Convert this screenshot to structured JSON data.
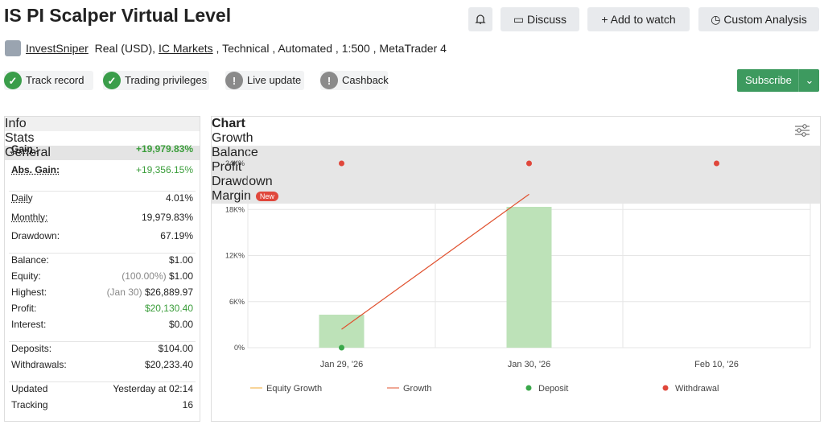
{
  "header": {
    "title": "IS PI Scalper Virtual Level",
    "buttons": [
      "Discuss",
      "Add to watch",
      "Custom Analysis"
    ],
    "author": "InvestSniper",
    "account": "Real (USD),",
    "broker": "IC Markets",
    "details": ", Technical , Automated , 1:500 , MetaTrader 4"
  },
  "badges": [
    {
      "label": "Track record",
      "ok": true
    },
    {
      "label": "Trading privileges",
      "ok": true
    },
    {
      "label": "Live update",
      "ok": false
    },
    {
      "label": "Cashback",
      "ok": false
    }
  ],
  "subscribe": "Subscribe",
  "stats": {
    "tabs": [
      "Info",
      "Stats",
      "General"
    ],
    "groups": [
      [
        {
          "label": "Gain :",
          "value": "+19,979.83%",
          "color": "#3a9d3a"
        },
        {
          "label": "Abs. Gain:",
          "value": "+19,356.15%",
          "color": "#3a9d3a"
        }
      ],
      [
        {
          "label": "Daily",
          "value": "4.01%"
        },
        {
          "label": "Monthly:",
          "value": "19,979.83%"
        },
        {
          "label": "Drawdown:",
          "value": "67.19%"
        }
      ],
      [
        {
          "label": "Balance:",
          "value": "$1.00"
        },
        {
          "label": "Equity:",
          "note": "(100.00%)",
          "value": "$1.00"
        },
        {
          "label": "Highest:",
          "note": "(Jan 30)",
          "value": "$26,889.97"
        },
        {
          "label": "Profit:",
          "value": "$20,130.40",
          "color": "#3a9d3a"
        },
        {
          "label": "Interest:",
          "value": "$0.00"
        }
      ],
      [
        {
          "label": "Deposits:",
          "value": "$104.00"
        },
        {
          "label": "Withdrawals:",
          "value": "$20,233.40"
        }
      ],
      [
        {
          "label": "Updated",
          "value": "Yesterday at 02:14"
        },
        {
          "label": "Tracking",
          "value": "16"
        }
      ]
    ]
  },
  "chart_tabs": [
    "Chart",
    "Growth",
    "Balance",
    "Profit",
    "Drawdown",
    "Margin"
  ],
  "new_badge": "New",
  "chart_data": {
    "type": "bar",
    "categories": [
      "Jan 29, '26",
      "Jan 30, '26",
      "Feb 10, '26"
    ],
    "ylim": [
      0,
      24000
    ],
    "yticks": [
      {
        "value": 0,
        "label": "0%"
      },
      {
        "value": 6000,
        "label": "6K%"
      },
      {
        "value": 12000,
        "label": "12K%"
      },
      {
        "value": 18000,
        "label": "18K%"
      },
      {
        "value": 24000,
        "label": "24K%"
      }
    ],
    "bars": {
      "color": "#bde2b8",
      "values": [
        4300,
        18340,
        null
      ]
    },
    "series": [
      {
        "name": "Equity Growth",
        "type": "line",
        "color": "#f0a830",
        "values": [
          null,
          null,
          null
        ]
      },
      {
        "name": "Growth",
        "type": "line",
        "color": "#e0502e",
        "values": [
          2400,
          19980,
          null
        ]
      },
      {
        "name": "Deposit",
        "type": "scatter",
        "color": "#3aa84a",
        "values": [
          0,
          null,
          null
        ]
      },
      {
        "name": "Withdrawal",
        "type": "scatter",
        "color": "#e0473b",
        "values": [
          24000,
          24000,
          24000
        ]
      }
    ],
    "grid": true
  }
}
